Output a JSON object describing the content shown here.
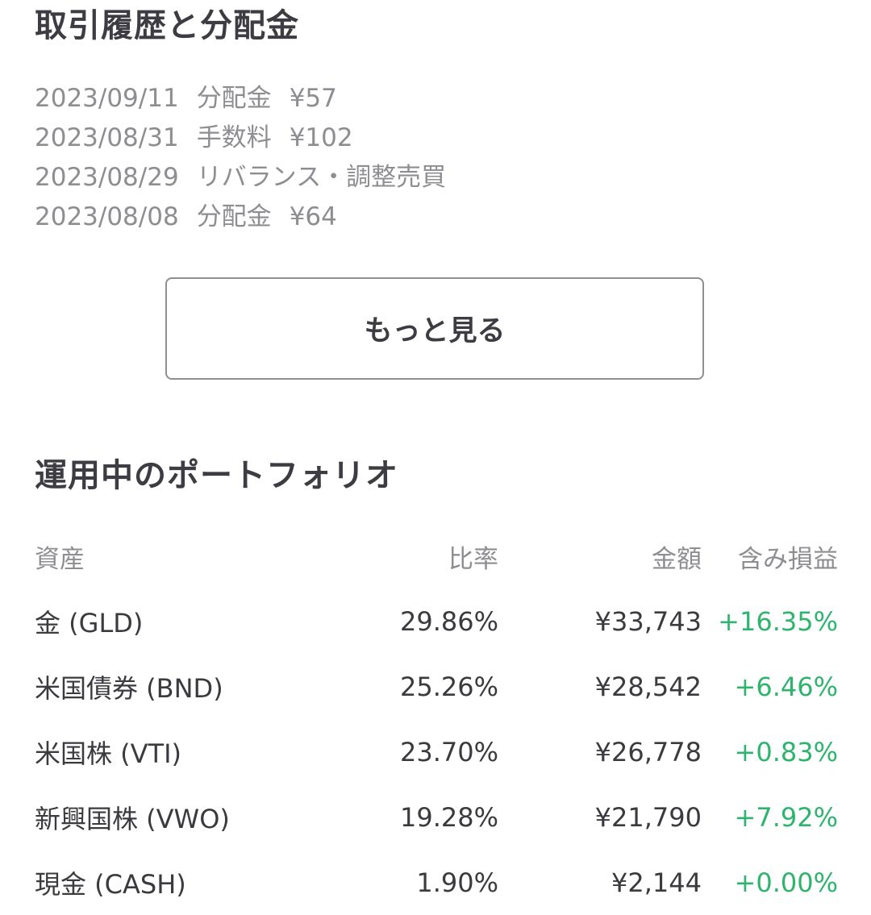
{
  "history": {
    "title": "取引履歴と分配金",
    "items": [
      {
        "date": "2023/09/11",
        "type": "分配金",
        "amount": "¥57"
      },
      {
        "date": "2023/08/31",
        "type": "手数料",
        "amount": "¥102"
      },
      {
        "date": "2023/08/29",
        "type": "リバランス・調整売買",
        "amount": ""
      },
      {
        "date": "2023/08/08",
        "type": "分配金",
        "amount": "¥64"
      }
    ],
    "more_label": "もっと見る"
  },
  "portfolio": {
    "title": "運用中のポートフォリオ",
    "columns": {
      "asset": "資産",
      "ratio": "比率",
      "amount": "金額",
      "pnl": "含み損益"
    },
    "rows": [
      {
        "asset": "金 (GLD)",
        "ratio": "29.86%",
        "amount": "¥33,743",
        "pnl": "+16.35%"
      },
      {
        "asset": "米国債券 (BND)",
        "ratio": "25.26%",
        "amount": "¥28,542",
        "pnl": "+6.46%"
      },
      {
        "asset": "米国株 (VTI)",
        "ratio": "23.70%",
        "amount": "¥26,778",
        "pnl": "+0.83%"
      },
      {
        "asset": "新興国株 (VWO)",
        "ratio": "19.28%",
        "amount": "¥21,790",
        "pnl": "+7.92%"
      },
      {
        "asset": "現金 (CASH)",
        "ratio": "1.90%",
        "amount": "¥2,144",
        "pnl": "+0.00%"
      }
    ]
  },
  "colors": {
    "positive": "#2fb46e",
    "text_primary": "#3a3a3f",
    "text_secondary": "#8d8d92",
    "border": "#8e8e93"
  }
}
